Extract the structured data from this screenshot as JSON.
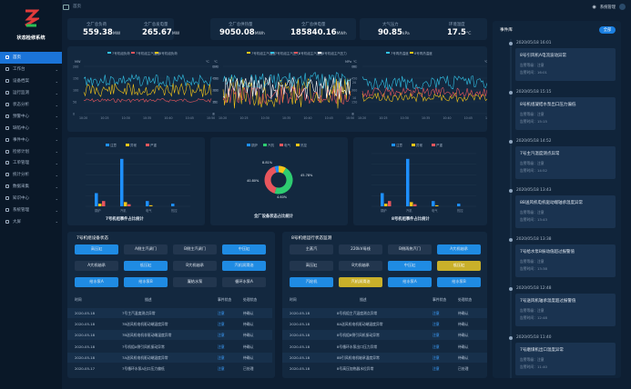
{
  "app": {
    "name": "状态检修系统"
  },
  "sidebar": {
    "items": [
      {
        "label": "首页",
        "active": true
      },
      {
        "label": "工作台",
        "active": false
      },
      {
        "label": "设备档案",
        "active": false
      },
      {
        "label": "运行监测",
        "active": false
      },
      {
        "label": "状态分析",
        "active": false
      },
      {
        "label": "预警中心",
        "active": false
      },
      {
        "label": "缺陷中心",
        "active": false
      },
      {
        "label": "事件中心",
        "active": false
      },
      {
        "label": "检修计划",
        "active": false
      },
      {
        "label": "工单管理",
        "active": false
      },
      {
        "label": "统计分析",
        "active": false
      },
      {
        "label": "数据采集",
        "active": false
      },
      {
        "label": "知识中心",
        "active": false
      },
      {
        "label": "系统管理",
        "active": false
      },
      {
        "label": "大屏",
        "active": false
      }
    ]
  },
  "topbar": {
    "home": "首页",
    "user": "系统管理"
  },
  "kpis": [
    {
      "label": "全厂总负荷",
      "value": "559.38",
      "unit": "MW"
    },
    {
      "label": "全厂总发电量",
      "value": "265.67",
      "unit": "MW"
    },
    {
      "label": "全厂总供热量",
      "value": "9050.08",
      "unit": "MWh"
    },
    {
      "label": "全厂总供电量",
      "value": "185840.16",
      "unit": "MWh"
    },
    {
      "label": "大气压力",
      "value": "90.85",
      "unit": "kPa"
    },
    {
      "label": "环境温度",
      "value": "17.5",
      "unit": "°C"
    }
  ],
  "charts": {
    "line1": {
      "legend": [
        "7号机组负荷",
        "7号机组主汽温度",
        "8号机组负荷"
      ],
      "y_unit_left": "MW",
      "y_unit_right": "℃",
      "ticks_left": [
        "200",
        "150",
        "100",
        "50",
        "0"
      ],
      "ticks_right": [
        "240",
        "180",
        "120",
        "60",
        "0"
      ],
      "x_ticks": [
        "10:20",
        "10:25",
        "10:30",
        "10:35",
        "10:40",
        "10:45",
        "10:50"
      ]
    },
    "line2": {
      "legend": [
        "7号机组主汽温度",
        "7号机组主汽压力",
        "8号机组主汽温度",
        "8号机组主汽压力"
      ],
      "y_unit_left": "℃",
      "y_unit_right": "MPa",
      "ticks_left": [
        "600",
        "450",
        "300",
        "150",
        "0"
      ],
      "ticks_right": [
        "30",
        "20",
        "10",
        "0"
      ],
      "x_ticks": [
        "10:20",
        "10:25",
        "10:30",
        "10:35",
        "10:40",
        "10:45",
        "10:50"
      ]
    },
    "line3": {
      "legend": [
        "7号再热温度",
        "8号再热温度"
      ],
      "y_unit_left": "℃",
      "y_unit_right": "℃",
      "ticks_left": [
        "600",
        "450",
        "300",
        "150",
        "0"
      ],
      "ticks_right": [
        "600",
        "450",
        "300",
        "150",
        "0"
      ],
      "x_ticks": [
        "10:20",
        "10:25",
        "10:30",
        "10:35",
        "10:40",
        "10:45",
        "10:50"
      ]
    }
  },
  "bars": [
    {
      "title": "7号机组事件占比统计",
      "legend": [
        "注意",
        "异常",
        "严重"
      ],
      "categories": [
        "锅炉",
        "汽机",
        "电气",
        "热控"
      ]
    },
    {
      "title": "全厂设备状态占比统计",
      "legend": [
        "锅炉",
        "汽机",
        "电气",
        "热控"
      ]
    },
    {
      "title": "8号机组事件占比统计",
      "legend": [
        "注意",
        "异常",
        "严重"
      ],
      "categories": [
        "锅炉",
        "汽机",
        "电气",
        "热控"
      ]
    }
  ],
  "donut": {
    "labels": [
      "8.81%",
      "45.78%",
      "40.80%",
      "4.60%"
    ],
    "colors": [
      "#f5c518",
      "#2ecc71",
      "#e8565d",
      "#1e90ff"
    ]
  },
  "unit7": {
    "title": "7号机组设备状态",
    "buttons": [
      {
        "label": "高压缸",
        "style": "blue"
      },
      {
        "label": "A侧主汽调门",
        "style": "dark"
      },
      {
        "label": "B侧主汽调门",
        "style": "dark"
      },
      {
        "label": "中压缸",
        "style": "blue"
      },
      {
        "label": "A大机轴承",
        "style": "dark"
      },
      {
        "label": "低压缸",
        "style": "blue"
      },
      {
        "label": "B大机轴承",
        "style": "dark"
      },
      {
        "label": "汽机润滑油",
        "style": "blue"
      },
      {
        "label": "给水泵A",
        "style": "blue"
      },
      {
        "label": "给水泵B",
        "style": "blue"
      },
      {
        "label": "凝结水泵",
        "style": "dark"
      },
      {
        "label": "循环水泵A",
        "style": "dark"
      }
    ]
  },
  "unit8": {
    "title": "8号机组运行状态监测",
    "buttons": [
      {
        "label": "主蒸汽",
        "style": "dark"
      },
      {
        "label": "220kV母线",
        "style": "dark"
      },
      {
        "label": "B侧再热汽门",
        "style": "dark"
      },
      {
        "label": "A大机轴承",
        "style": "blue"
      },
      {
        "label": "高压缸",
        "style": "dark"
      },
      {
        "label": "8大机轴承",
        "style": "dark"
      },
      {
        "label": "中压缸",
        "style": "blue"
      },
      {
        "label": "低压缸",
        "style": "yellow"
      },
      {
        "label": "汽轮机",
        "style": "blue"
      },
      {
        "label": "汽机润滑油",
        "style": "yellow"
      },
      {
        "label": "给水泵A",
        "style": "blue"
      },
      {
        "label": "给水泵B",
        "style": "blue"
      }
    ]
  },
  "table7": {
    "headers": [
      "时间",
      "描述",
      "事件状态",
      "处理状态"
    ],
    "rows": [
      [
        "2020-05-18",
        "7号主汽温度测点异常",
        "注意",
        "待确认"
      ],
      [
        "2020-05-18",
        "7B送风机电机驱动端温度异常",
        "注意",
        "待确认"
      ],
      [
        "2020-05-18",
        "7B送风机电机非驱动端温度异常",
        "注意",
        "待确认"
      ],
      [
        "2020-05-18",
        "7号机组A侧引风机振动异常",
        "注意",
        "待确认"
      ],
      [
        "2020-05-18",
        "7A送风机电机驱动端温度异常",
        "注意",
        "待确认"
      ],
      [
        "2020-05-17",
        "7号循环水泵A出口压力偏低",
        "注意",
        "已处理"
      ]
    ]
  },
  "table8": {
    "headers": [
      "时间",
      "描述",
      "事件状态",
      "处理状态"
    ],
    "rows": [
      [
        "2020-05-18",
        "8号机组主汽温度测点异常",
        "注意",
        "待确认"
      ],
      [
        "2020-05-18",
        "8A送风机电机驱动端温度异常",
        "注意",
        "待确认"
      ],
      [
        "2020-05-18",
        "8号机组B侧引风机振动异常",
        "注意",
        "待确认"
      ],
      [
        "2020-05-18",
        "8号循环水泵出口压力异常",
        "注意",
        "待确认"
      ],
      [
        "2020-05-18",
        "8B引风机电机轴承温度异常",
        "注意",
        "待确认"
      ],
      [
        "2020-05-18",
        "8号高压加热器水位异常",
        "注意",
        "已处理"
      ]
    ]
  },
  "events": {
    "title": "事件库",
    "more": "全部",
    "items": [
      {
        "date": "2020/05/18 16:01",
        "title": "8号引风机A电流波动异常",
        "meta1": "告警等级：注意",
        "meta2": "告警时间：16:01"
      },
      {
        "date": "2020/05/18 15:15",
        "title": "8号机组凝结水泵出口压力偏低",
        "meta1": "告警等级：注意",
        "meta2": "告警时间：15:15"
      },
      {
        "date": "2020/05/18 14:52",
        "title": "7号主汽温度测点异常",
        "meta1": "告警等级：注意",
        "meta2": "告警时间：14:52"
      },
      {
        "date": "2020/05/18 13:43",
        "title": "8B送风机电机驱动端轴承温度异常",
        "meta1": "告警等级：注意",
        "meta2": "告警时间：13:43"
      },
      {
        "date": "2020/05/18 13:38",
        "title": "7号给水泵B振动值超过报警值",
        "meta1": "告警等级：注意",
        "meta2": "告警时间：13:38"
      },
      {
        "date": "2020/05/18 12:48",
        "title": "7号送风机轴承温度超过报警值",
        "meta1": "告警等级：注意",
        "meta2": "告警时间：12:48"
      },
      {
        "date": "2020/05/18 11:40",
        "title": "7号磨煤机出口温度异常",
        "meta1": "告警等级：注意",
        "meta2": "告警时间：11:40"
      }
    ]
  }
}
